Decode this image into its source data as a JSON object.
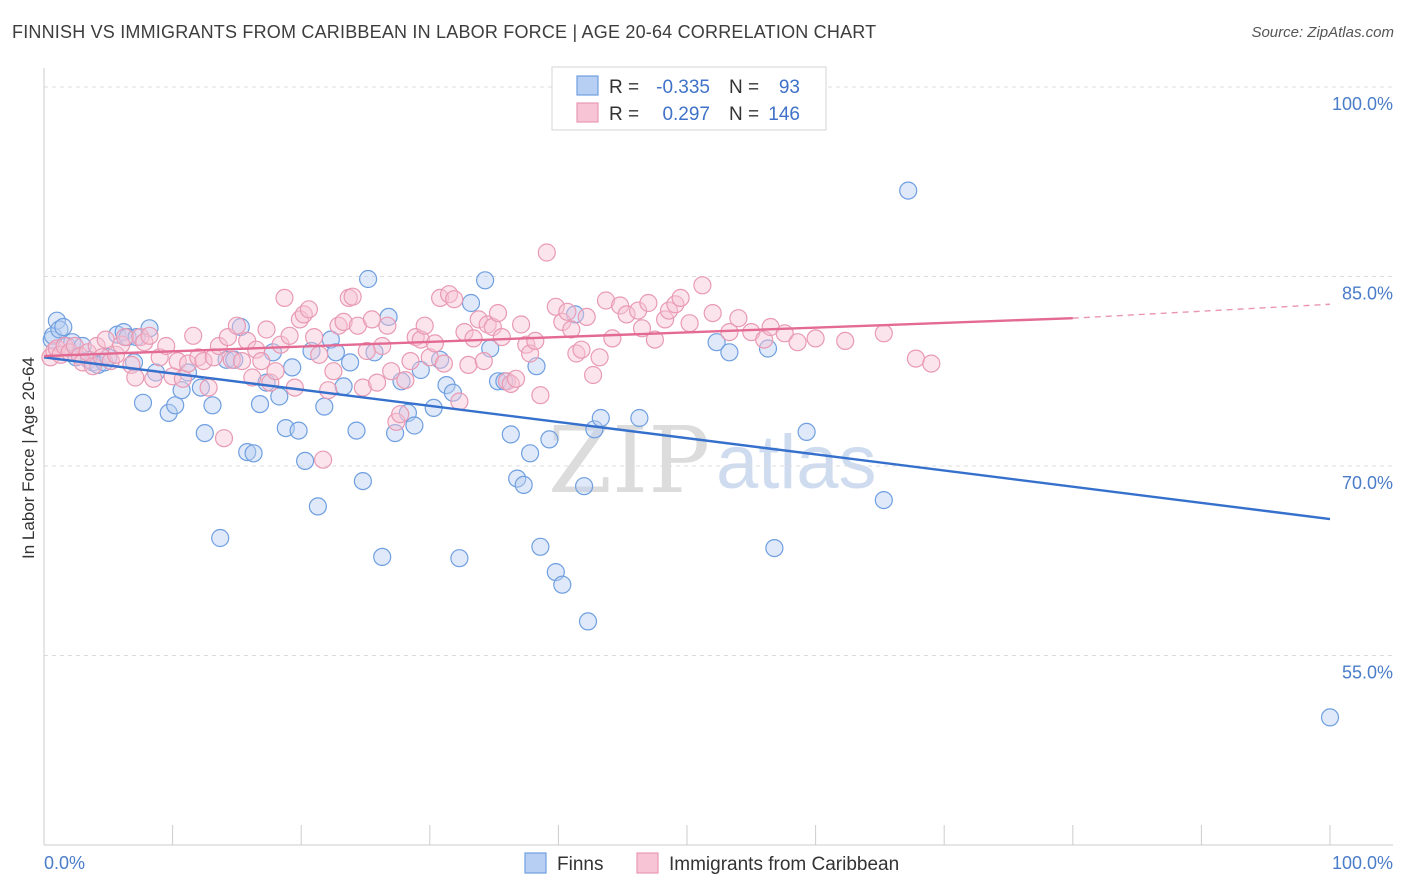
{
  "title": "FINNISH VS IMMIGRANTS FROM CARIBBEAN IN LABOR FORCE | AGE 20-64 CORRELATION CHART",
  "source": "Source: ZipAtlas.com",
  "watermark": {
    "zip": "ZIP",
    "atlas": "atlas"
  },
  "chart_data": {
    "type": "scatter",
    "title": "FINNISH VS IMMIGRANTS FROM CARIBBEAN IN LABOR FORCE | AGE 20-64 CORRELATION CHART",
    "ylabel": "In Labor Force | Age 20-64",
    "xlim": [
      0,
      100
    ],
    "ylim": [
      40,
      101.5
    ],
    "x_tick_labels": [
      "0.0%",
      "100.0%"
    ],
    "y_ticks": [
      {
        "value": 100,
        "label": "100.0%"
      },
      {
        "value": 85,
        "label": "85.0%"
      },
      {
        "value": 70,
        "label": "70.0%"
      },
      {
        "value": 55,
        "label": "55.0%"
      }
    ],
    "grid": "horizontal dashed",
    "legend_position": "bottom",
    "stats": [
      {
        "r_label": "R =",
        "r": "-0.335",
        "n_label": "N =",
        "n": "93"
      },
      {
        "r_label": "R =",
        "r": "0.297",
        "n_label": "N =",
        "n": "146"
      }
    ],
    "series": [
      {
        "name": "Finns",
        "color": "#6f9fe0",
        "fill": "#b7cff2",
        "trend": {
          "x": [
            0,
            100
          ],
          "y": [
            78.6,
            65.8
          ],
          "color": "#3570cc"
        },
        "points": [
          [
            0.6,
            80.0
          ],
          [
            0.7,
            80.3
          ],
          [
            1.0,
            81.5
          ],
          [
            1.2,
            80.8
          ],
          [
            1.5,
            81.0
          ],
          [
            1.8,
            79.5
          ],
          [
            2.2,
            79.8
          ],
          [
            2.5,
            78.6
          ],
          [
            3.0,
            79.5
          ],
          [
            3.5,
            78.4
          ],
          [
            3.8,
            78.2
          ],
          [
            4.2,
            78.0
          ],
          [
            4.7,
            78.2
          ],
          [
            5.0,
            78.6
          ],
          [
            5.7,
            80.4
          ],
          [
            6.2,
            80.6
          ],
          [
            6.5,
            80.2
          ],
          [
            7.0,
            78.2
          ],
          [
            7.2,
            80.2
          ],
          [
            7.7,
            75.0
          ],
          [
            8.2,
            80.9
          ],
          [
            8.7,
            77.4
          ],
          [
            9.7,
            74.2
          ],
          [
            10.2,
            74.8
          ],
          [
            10.7,
            76.0
          ],
          [
            11.2,
            77.4
          ],
          [
            12.2,
            76.2
          ],
          [
            12.5,
            72.6
          ],
          [
            13.1,
            74.8
          ],
          [
            13.7,
            64.3
          ],
          [
            14.2,
            78.4
          ],
          [
            14.8,
            78.4
          ],
          [
            15.3,
            81.0
          ],
          [
            15.8,
            71.1
          ],
          [
            16.3,
            71.0
          ],
          [
            16.8,
            74.9
          ],
          [
            17.3,
            76.6
          ],
          [
            17.8,
            79.0
          ],
          [
            18.3,
            75.5
          ],
          [
            18.8,
            73.0
          ],
          [
            19.3,
            77.8
          ],
          [
            19.8,
            72.8
          ],
          [
            20.3,
            70.4
          ],
          [
            20.8,
            79.1
          ],
          [
            21.3,
            66.8
          ],
          [
            21.8,
            74.7
          ],
          [
            22.3,
            80.0
          ],
          [
            22.7,
            79.0
          ],
          [
            23.3,
            76.3
          ],
          [
            23.8,
            78.2
          ],
          [
            24.3,
            72.8
          ],
          [
            24.8,
            68.8
          ],
          [
            25.2,
            84.8
          ],
          [
            25.7,
            79.0
          ],
          [
            26.3,
            62.8
          ],
          [
            26.8,
            81.8
          ],
          [
            27.3,
            72.6
          ],
          [
            27.8,
            76.7
          ],
          [
            28.3,
            74.2
          ],
          [
            28.8,
            73.2
          ],
          [
            29.3,
            77.6
          ],
          [
            30.3,
            74.6
          ],
          [
            30.8,
            78.4
          ],
          [
            31.3,
            76.4
          ],
          [
            31.8,
            75.8
          ],
          [
            32.3,
            62.7
          ],
          [
            33.2,
            82.9
          ],
          [
            34.3,
            84.7
          ],
          [
            34.7,
            79.3
          ],
          [
            35.3,
            76.7
          ],
          [
            35.8,
            76.7
          ],
          [
            36.3,
            72.5
          ],
          [
            36.8,
            69.0
          ],
          [
            37.3,
            68.5
          ],
          [
            37.8,
            71.0
          ],
          [
            38.3,
            77.9
          ],
          [
            38.6,
            63.6
          ],
          [
            39.3,
            72.1
          ],
          [
            39.8,
            61.6
          ],
          [
            40.3,
            60.6
          ],
          [
            41.3,
            82.0
          ],
          [
            42.0,
            68.4
          ],
          [
            42.3,
            57.7
          ],
          [
            42.8,
            72.9
          ],
          [
            43.3,
            73.8
          ],
          [
            46.3,
            73.8
          ],
          [
            52.3,
            79.8
          ],
          [
            53.3,
            79.0
          ],
          [
            56.3,
            79.3
          ],
          [
            56.8,
            63.5
          ],
          [
            59.3,
            72.7
          ],
          [
            65.3,
            67.3
          ],
          [
            67.2,
            91.8
          ],
          [
            100.0,
            50.1
          ]
        ]
      },
      {
        "name": "Immigrants from Caribbean",
        "color": "#e99ab3",
        "fill": "#f6c4d4",
        "trend": {
          "x": [
            0,
            80
          ],
          "y": [
            78.7,
            81.7
          ],
          "dash_x": [
            80,
            100
          ],
          "dash_y": [
            81.7,
            82.8
          ],
          "color": "#e36a93"
        },
        "points": [
          [
            0.5,
            78.6
          ],
          [
            0.8,
            79.1
          ],
          [
            1.0,
            79.3
          ],
          [
            1.3,
            78.8
          ],
          [
            1.6,
            79.5
          ],
          [
            2.0,
            79.0
          ],
          [
            2.4,
            79.5
          ],
          [
            2.8,
            78.7
          ],
          [
            3.0,
            78.2
          ],
          [
            3.4,
            79.0
          ],
          [
            3.8,
            77.9
          ],
          [
            4.1,
            79.5
          ],
          [
            4.5,
            78.6
          ],
          [
            4.8,
            80.0
          ],
          [
            5.2,
            78.3
          ],
          [
            5.6,
            78.8
          ],
          [
            6.0,
            79.6
          ],
          [
            6.3,
            80.2
          ],
          [
            6.8,
            78.0
          ],
          [
            7.1,
            77.0
          ],
          [
            7.5,
            80.2
          ],
          [
            7.8,
            79.8
          ],
          [
            8.2,
            80.3
          ],
          [
            8.5,
            76.9
          ],
          [
            9.0,
            78.6
          ],
          [
            9.5,
            79.5
          ],
          [
            10.0,
            77.1
          ],
          [
            10.4,
            78.3
          ],
          [
            10.8,
            76.9
          ],
          [
            11.2,
            78.1
          ],
          [
            11.6,
            80.3
          ],
          [
            12.0,
            78.6
          ],
          [
            12.4,
            78.3
          ],
          [
            12.8,
            76.2
          ],
          [
            13.2,
            78.6
          ],
          [
            13.6,
            79.5
          ],
          [
            14.0,
            72.2
          ],
          [
            14.3,
            80.2
          ],
          [
            14.6,
            78.4
          ],
          [
            15.0,
            81.1
          ],
          [
            15.4,
            78.3
          ],
          [
            15.8,
            79.9
          ],
          [
            16.2,
            77.0
          ],
          [
            16.5,
            79.2
          ],
          [
            16.9,
            78.3
          ],
          [
            17.3,
            80.8
          ],
          [
            17.6,
            76.6
          ],
          [
            18.0,
            77.5
          ],
          [
            18.4,
            79.6
          ],
          [
            18.7,
            83.3
          ],
          [
            19.1,
            80.3
          ],
          [
            19.5,
            76.2
          ],
          [
            19.9,
            81.6
          ],
          [
            20.2,
            82.0
          ],
          [
            20.6,
            82.4
          ],
          [
            21.0,
            80.2
          ],
          [
            21.4,
            78.8
          ],
          [
            21.7,
            70.5
          ],
          [
            22.1,
            76.0
          ],
          [
            22.5,
            77.5
          ],
          [
            22.9,
            81.1
          ],
          [
            23.3,
            81.4
          ],
          [
            23.7,
            83.3
          ],
          [
            24.0,
            83.4
          ],
          [
            24.4,
            81.1
          ],
          [
            24.8,
            76.2
          ],
          [
            25.1,
            79.1
          ],
          [
            25.5,
            81.6
          ],
          [
            25.9,
            76.6
          ],
          [
            26.3,
            79.5
          ],
          [
            26.7,
            81.1
          ],
          [
            27.0,
            77.5
          ],
          [
            27.4,
            73.5
          ],
          [
            27.7,
            74.1
          ],
          [
            28.1,
            76.8
          ],
          [
            28.5,
            78.3
          ],
          [
            28.9,
            80.2
          ],
          [
            29.3,
            80.0
          ],
          [
            29.6,
            81.1
          ],
          [
            30.0,
            78.6
          ],
          [
            30.4,
            79.7
          ],
          [
            30.8,
            83.3
          ],
          [
            31.1,
            78.1
          ],
          [
            31.5,
            83.6
          ],
          [
            31.9,
            83.2
          ],
          [
            32.3,
            75.1
          ],
          [
            32.7,
            80.6
          ],
          [
            33.0,
            78.0
          ],
          [
            33.4,
            80.1
          ],
          [
            33.8,
            81.6
          ],
          [
            34.2,
            78.3
          ],
          [
            34.5,
            81.2
          ],
          [
            34.9,
            81.0
          ],
          [
            35.3,
            82.1
          ],
          [
            35.6,
            80.2
          ],
          [
            36.0,
            76.7
          ],
          [
            36.3,
            76.5
          ],
          [
            36.7,
            76.9
          ],
          [
            37.1,
            81.2
          ],
          [
            37.5,
            79.6
          ],
          [
            37.8,
            78.9
          ],
          [
            38.2,
            79.9
          ],
          [
            38.6,
            75.6
          ],
          [
            39.1,
            86.9
          ],
          [
            39.8,
            82.6
          ],
          [
            40.3,
            81.4
          ],
          [
            40.7,
            82.2
          ],
          [
            41.0,
            80.8
          ],
          [
            41.4,
            78.9
          ],
          [
            41.8,
            79.2
          ],
          [
            42.2,
            81.8
          ],
          [
            42.7,
            77.2
          ],
          [
            43.2,
            78.6
          ],
          [
            43.7,
            83.1
          ],
          [
            44.2,
            80.1
          ],
          [
            44.8,
            82.7
          ],
          [
            45.3,
            82.0
          ],
          [
            46.2,
            82.3
          ],
          [
            46.5,
            80.9
          ],
          [
            47.0,
            82.9
          ],
          [
            47.5,
            80.0
          ],
          [
            48.3,
            81.6
          ],
          [
            48.6,
            82.3
          ],
          [
            49.1,
            82.8
          ],
          [
            49.5,
            83.3
          ],
          [
            50.2,
            81.3
          ],
          [
            51.2,
            84.3
          ],
          [
            52.0,
            82.1
          ],
          [
            53.3,
            80.6
          ],
          [
            54.0,
            81.7
          ],
          [
            55.0,
            80.6
          ],
          [
            56.0,
            80.0
          ],
          [
            56.5,
            81.0
          ],
          [
            57.6,
            80.5
          ],
          [
            58.6,
            79.8
          ],
          [
            60.0,
            80.1
          ],
          [
            62.3,
            79.9
          ],
          [
            65.3,
            80.5
          ],
          [
            67.8,
            78.5
          ],
          [
            69.0,
            78.1
          ]
        ]
      }
    ]
  },
  "legend": {
    "items": [
      {
        "label": "Finns"
      },
      {
        "label": "Immigrants from Caribbean"
      }
    ]
  }
}
